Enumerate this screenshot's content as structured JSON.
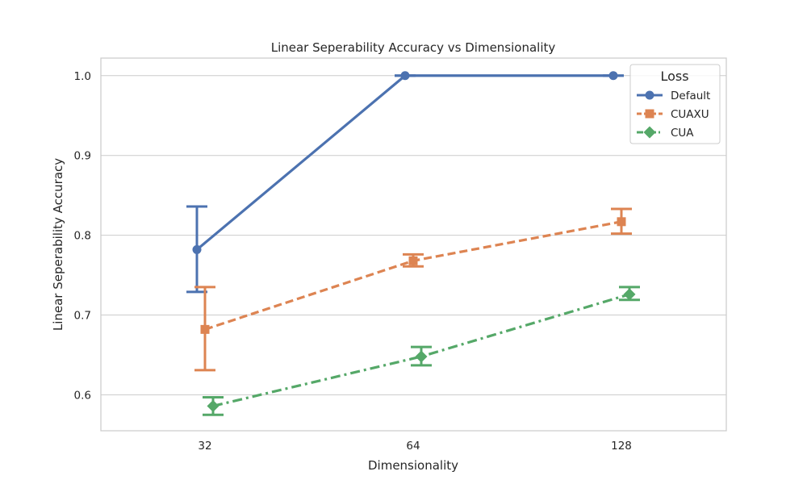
{
  "chart_data": {
    "type": "line",
    "title": "Linear Seperability Accuracy vs Dimensionality",
    "xlabel": "Dimensionality",
    "ylabel": "Linear Seperability Accuracy",
    "categories": [
      "32",
      "64",
      "128"
    ],
    "ylim": [
      0.555,
      1.022
    ],
    "yticks": [
      0.6,
      0.7,
      0.8,
      0.9,
      1.0
    ],
    "ytick_labels": [
      "0.6",
      "0.7",
      "0.8",
      "0.9",
      "1.0"
    ],
    "grid": "horizontal",
    "legend": {
      "title": "Loss",
      "position": "top-right"
    },
    "series": [
      {
        "name": "Default",
        "color": "#4c72b0",
        "marker": "circle",
        "line_style": "solid",
        "values": [
          0.782,
          1.0,
          1.0
        ],
        "error_low": [
          0.729,
          1.0,
          1.0
        ],
        "error_high": [
          0.836,
          1.0,
          1.0
        ]
      },
      {
        "name": "CUAXU",
        "color": "#dd8452",
        "marker": "square",
        "line_style": "dashed",
        "values": [
          0.682,
          0.768,
          0.817
        ],
        "error_low": [
          0.631,
          0.761,
          0.802
        ],
        "error_high": [
          0.735,
          0.776,
          0.833
        ]
      },
      {
        "name": "CUA",
        "color": "#55a868",
        "marker": "diamond",
        "line_style": "dashdot",
        "values": [
          0.586,
          0.648,
          0.726
        ],
        "error_low": [
          0.575,
          0.637,
          0.719
        ],
        "error_high": [
          0.597,
          0.66,
          0.735
        ]
      }
    ]
  }
}
